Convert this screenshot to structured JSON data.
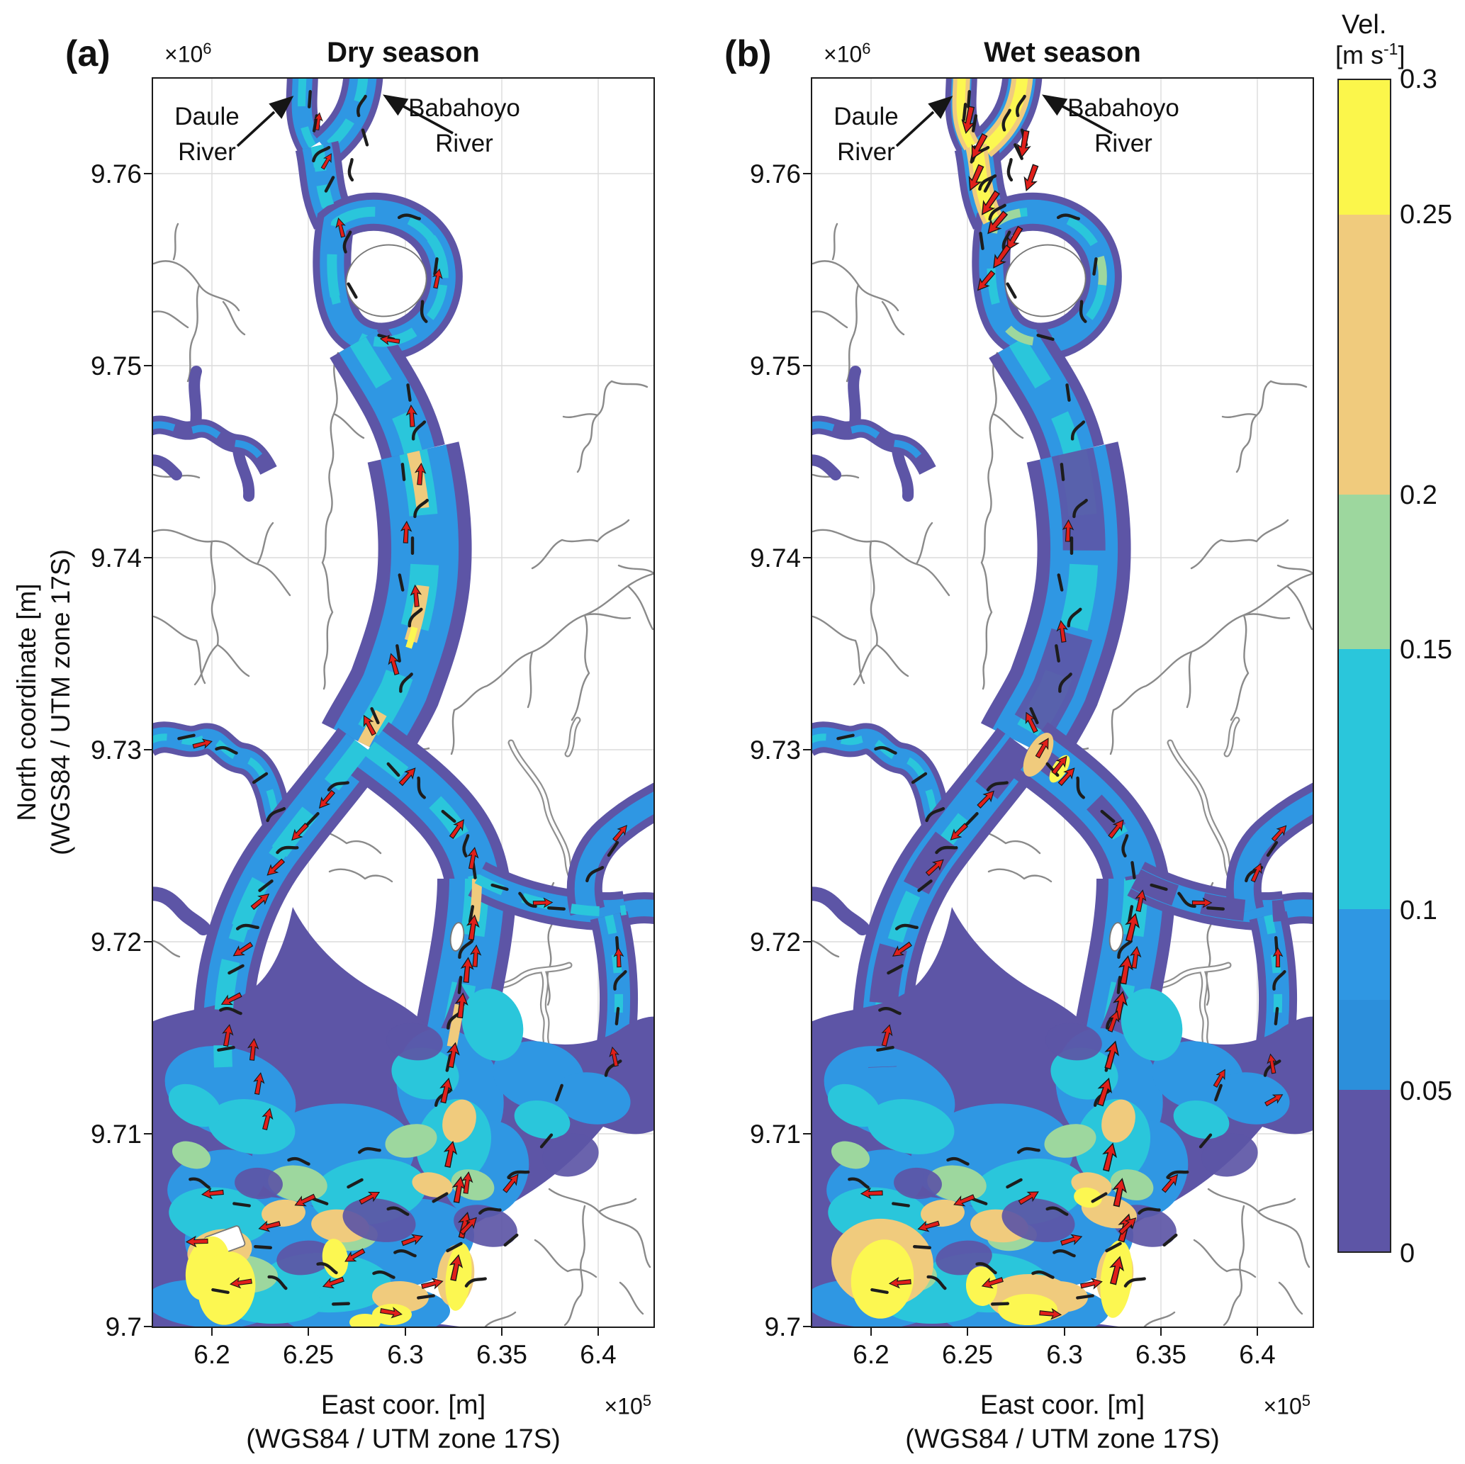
{
  "panels": [
    {
      "label": "(a)",
      "title": "Dry season",
      "annotations": {
        "daule_line1": "Daule",
        "daule_line2": "River",
        "babahoyo_line1": "Babahoyo",
        "babahoyo_line2": "River"
      }
    },
    {
      "label": "(b)",
      "title": "Wet season",
      "annotations": {
        "daule_line1": "Daule",
        "daule_line2": "River",
        "babahoyo_line1": "Babahoyo",
        "babahoyo_line2": "River"
      }
    }
  ],
  "axes": {
    "x_ticks": [
      "6.2",
      "6.25",
      "6.3",
      "6.35",
      "6.4"
    ],
    "y_ticks": [
      "9.76",
      "9.75",
      "9.74",
      "9.73",
      "9.72",
      "9.71",
      "9.7"
    ],
    "x_multiplier": {
      "base": "×10",
      "exp": "5"
    },
    "y_multiplier": {
      "base": "×10",
      "exp": "6"
    },
    "x_label_line1": "East coor. [m]",
    "x_label_line2": "(WGS84 / UTM zone 17S)",
    "y_label_line1": "North coordinate [m]",
    "y_label_line2": "(WGS84 / UTM zone 17S)"
  },
  "colorbar": {
    "title_line1": "Vel.",
    "title_line2_pre": "[m s",
    "title_line2_exp": "-1",
    "title_line2_post": "]",
    "ticks": [
      "0.3",
      "0.25",
      "0.2",
      "0.15",
      "0.1",
      "0.05",
      "0"
    ],
    "segments": [
      {
        "range": "0.25-0.3",
        "color": "#FBF64B",
        "pct": 11.5
      },
      {
        "range": "0.2-0.25",
        "color": "#F0CB7D",
        "pct": 23.9
      },
      {
        "range": "0.15-0.2",
        "color": "#9DD79E",
        "pct": 13.2
      },
      {
        "range": "0.1-0.15",
        "color": "#2AC6DB",
        "pct": 22.2
      },
      {
        "range": "0.075-0.1",
        "color": "#2F97E3",
        "pct": 7.7
      },
      {
        "range": "0.05-0.075",
        "color": "#2C8FDB",
        "pct": 7.7
      },
      {
        "range": "0-0.05",
        "color": "#5D55A6",
        "pct": 13.8
      }
    ]
  },
  "chart_data": {
    "type": "heatmap",
    "subtype": "residual-velocity-map-pair",
    "panels": [
      {
        "label": "(a)",
        "title": "Dry season",
        "annotations": [
          "Daule River",
          "Babahoyo River"
        ]
      },
      {
        "label": "(b)",
        "title": "Wet season",
        "annotations": [
          "Daule River",
          "Babahoyo River"
        ]
      }
    ],
    "xlabel": "East coor. [m] (WGS84 / UTM zone 17S)",
    "ylabel": "North coordinate [m] (WGS84 / UTM zone 17S)",
    "x_ticks": [
      6.2,
      6.25,
      6.3,
      6.35,
      6.4
    ],
    "x_scale": 100000,
    "xlim": [
      616800,
      643000
    ],
    "y_ticks": [
      9.7,
      9.71,
      9.72,
      9.73,
      9.74,
      9.75,
      9.76
    ],
    "y_scale": 1000000,
    "ylim": [
      9700000,
      9765000
    ],
    "grid": true,
    "colorbar": {
      "label": "Vel. [m s-1]",
      "ticks": [
        0,
        0.05,
        0.1,
        0.15,
        0.2,
        0.25,
        0.3
      ],
      "bands": [
        {
          "from": 0,
          "to": 0.05,
          "color": "#5D55A6"
        },
        {
          "from": 0.05,
          "to": 0.1,
          "color": "#2F97E3"
        },
        {
          "from": 0.1,
          "to": 0.15,
          "color": "#2AC6DB"
        },
        {
          "from": 0.15,
          "to": 0.2,
          "color": "#9DD79E"
        },
        {
          "from": 0.2,
          "to": 0.25,
          "color": "#F0CB7D"
        },
        {
          "from": 0.25,
          "to": 0.3,
          "color": "#FBF64B"
        }
      ],
      "arrow_color": "#E01F1A",
      "streamline_color": "#1d1d1d"
    }
  }
}
